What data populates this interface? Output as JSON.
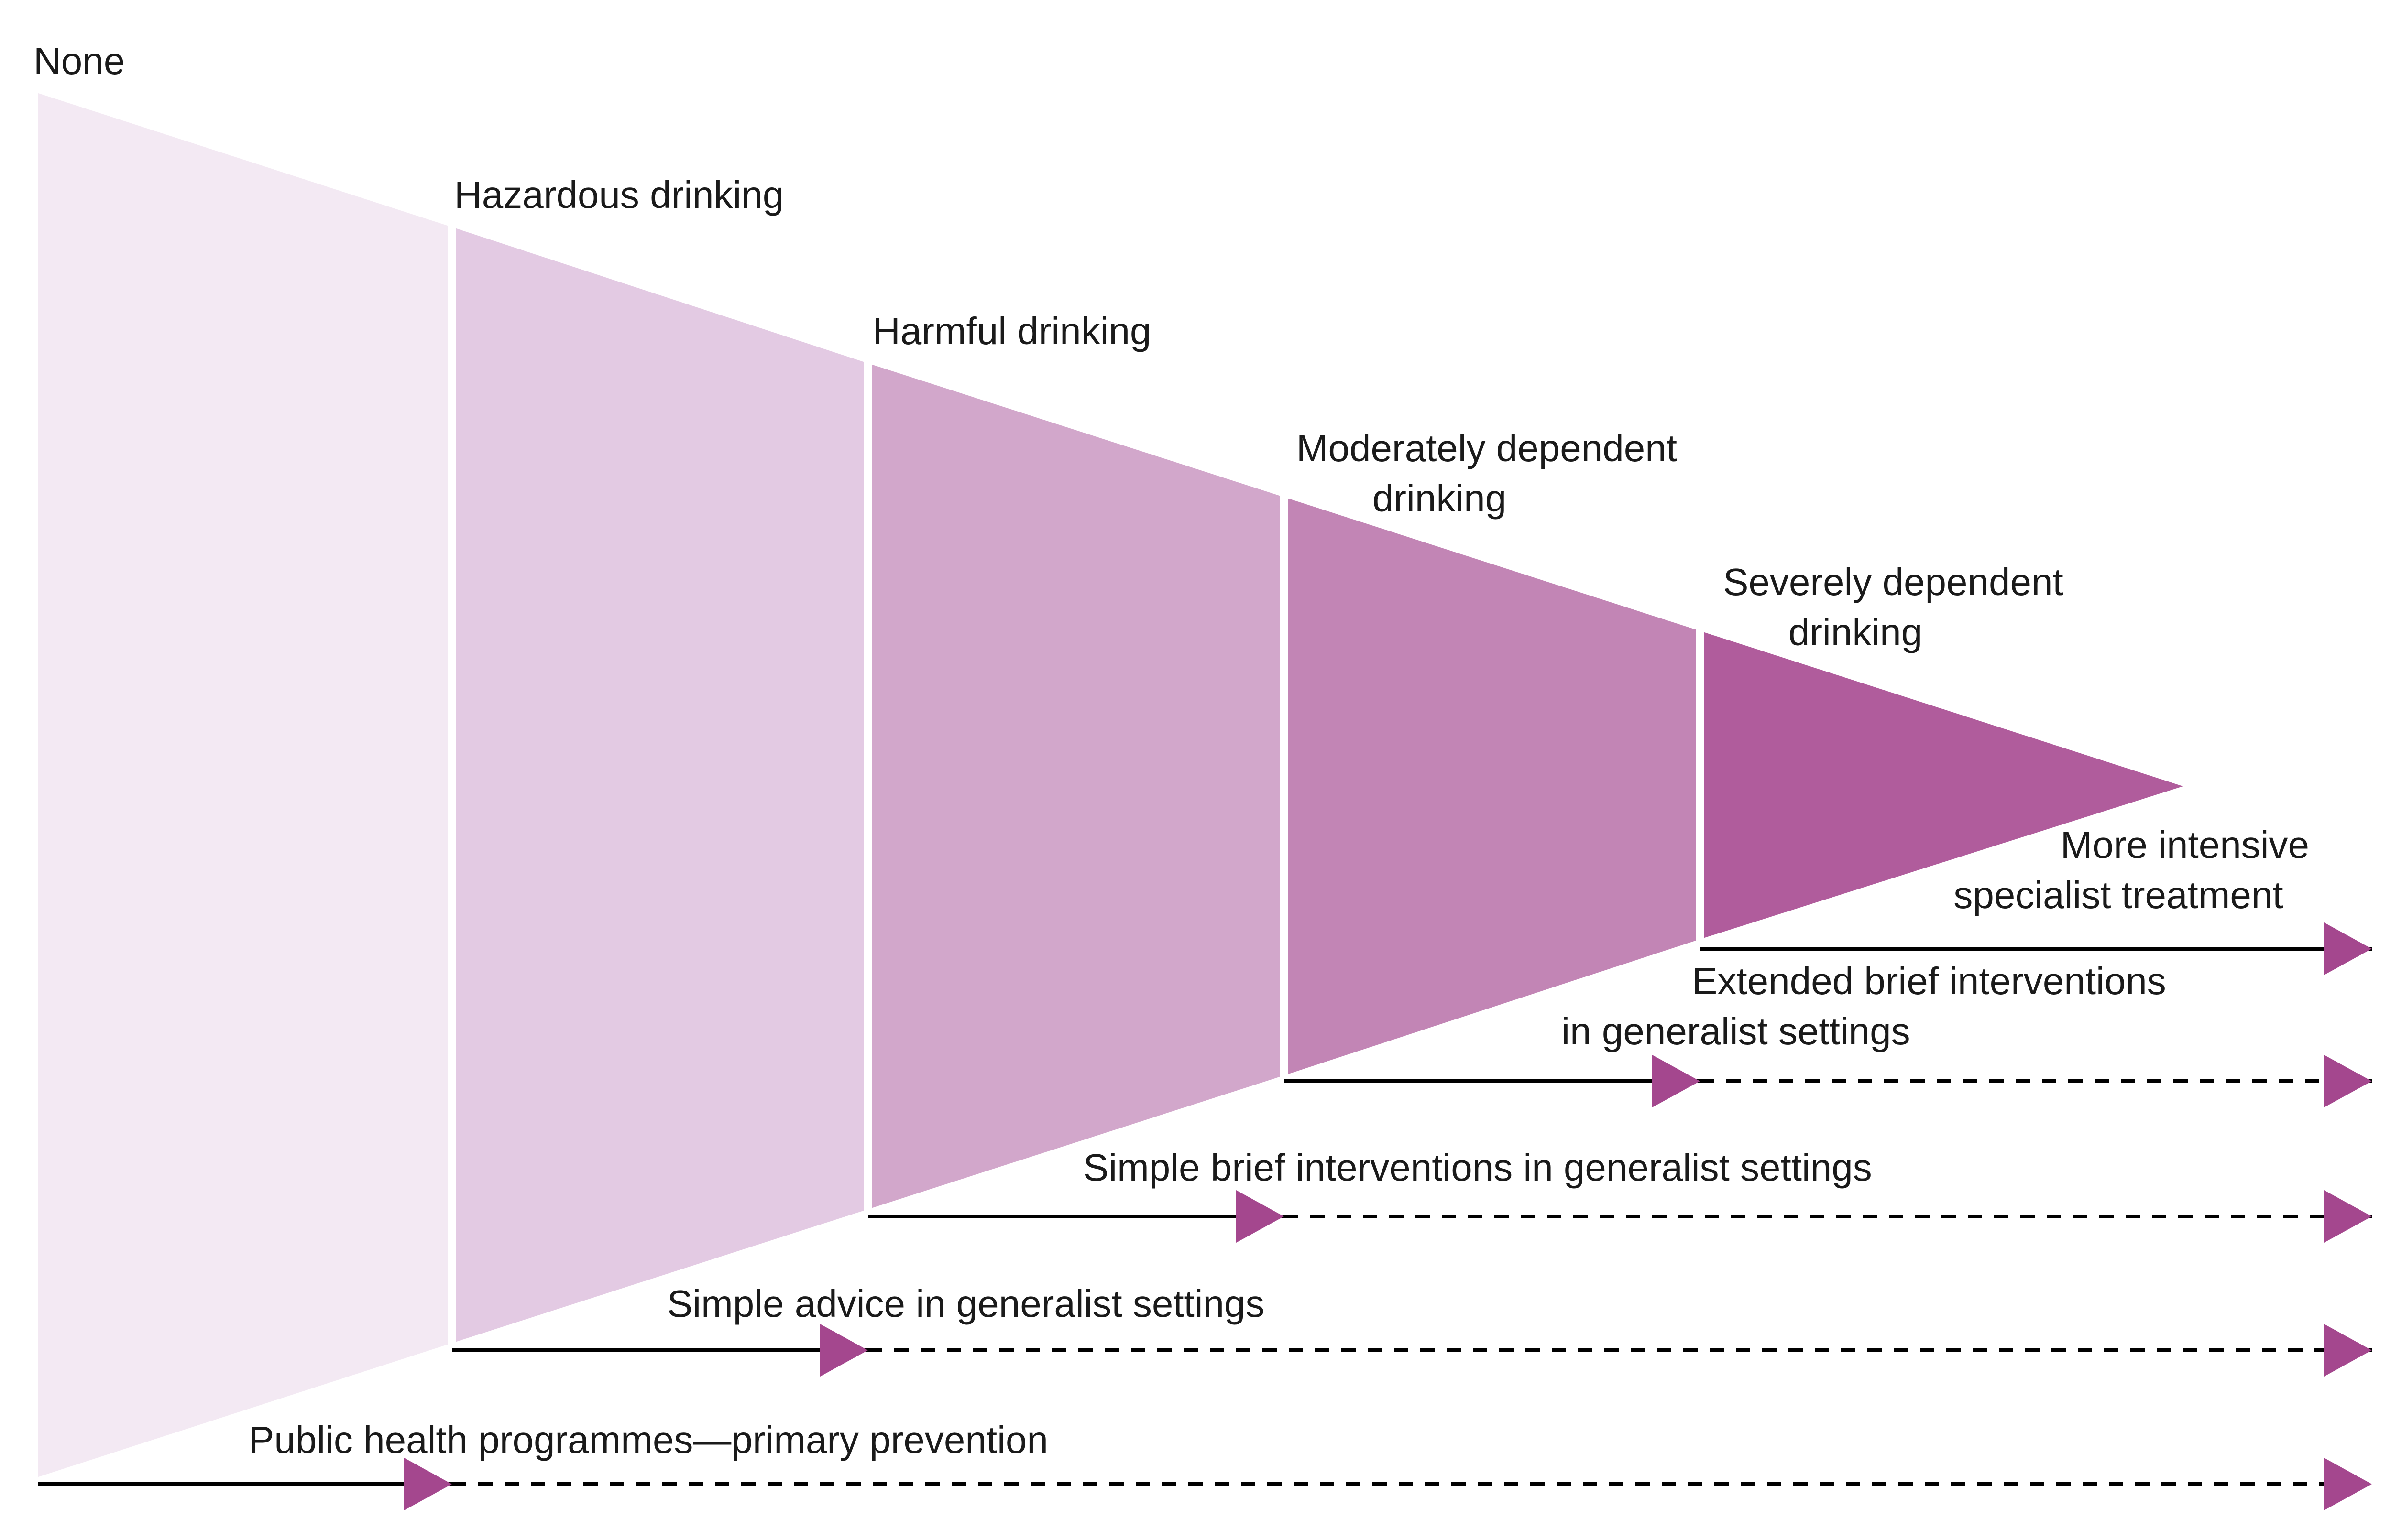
{
  "colors": {
    "band_none": "#F3E9F3",
    "band_hazardous": "#E3CAE3",
    "band_harmful": "#D2A7CB",
    "band_moderate": "#C285B5",
    "band_severe": "#B05C9C",
    "arrowhead": "#A4478E",
    "separator": "#FFFFFF",
    "line": "#000000"
  },
  "bands": [
    {
      "name": "none",
      "label_lines": [
        "None"
      ]
    },
    {
      "name": "hazardous",
      "label_lines": [
        "Hazardous drinking"
      ]
    },
    {
      "name": "harmful",
      "label_lines": [
        "Harmful drinking"
      ]
    },
    {
      "name": "moderate",
      "label_lines": [
        "Moderately dependent",
        "drinking"
      ]
    },
    {
      "name": "severe",
      "label_lines": [
        "Severely dependent",
        "drinking"
      ]
    }
  ],
  "interventions": [
    {
      "name": "public-health",
      "label_lines": [
        "Public health programmes—primary prevention"
      ]
    },
    {
      "name": "simple-advice",
      "label_lines": [
        "Simple advice in generalist settings"
      ]
    },
    {
      "name": "simple-brief",
      "label_lines": [
        "Simple brief interventions in generalist settings"
      ]
    },
    {
      "name": "extended-brief",
      "label_lines": [
        "Extended brief interventions",
        "in generalist settings"
      ]
    },
    {
      "name": "specialist",
      "label_lines": [
        "More intensive",
        "specialist treatment"
      ]
    }
  ]
}
